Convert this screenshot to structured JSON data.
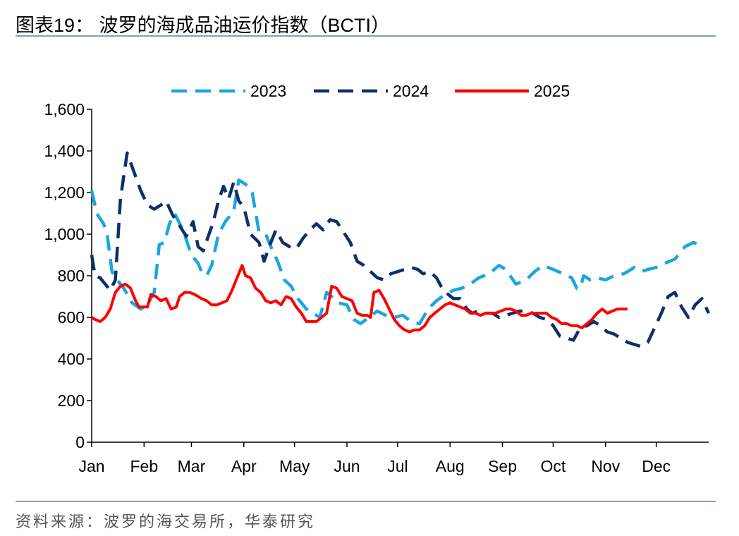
{
  "title": "图表19：  波罗的海成品油运价指数（BCTI）",
  "source": "资料来源：波罗的海交易所，华泰研究",
  "chart_data": {
    "type": "line",
    "x_unit": "day_of_year",
    "x_range": [
      1,
      366
    ],
    "months": [
      "Jan",
      "Feb",
      "Mar",
      "Apr",
      "May",
      "Jun",
      "Jul",
      "Aug",
      "Sep",
      "Oct",
      "Nov",
      "Dec"
    ],
    "month_start_days": [
      1,
      32,
      60,
      91,
      121,
      152,
      182,
      213,
      244,
      274,
      305,
      335
    ],
    "ylim": [
      0,
      1600
    ],
    "yticks": [
      0,
      200,
      400,
      600,
      800,
      1000,
      1200,
      1400,
      1600
    ],
    "ytick_labels": [
      "0",
      "200",
      "400",
      "600",
      "800",
      "1,000",
      "1,200",
      "1,400",
      "1,600"
    ],
    "legend_position": "top",
    "grid": false,
    "series": [
      {
        "name": "2023",
        "color": "#1aa6e0",
        "style": "dashed",
        "points": [
          [
            1,
            1210
          ],
          [
            4,
            1100
          ],
          [
            8,
            1050
          ],
          [
            10,
            1010
          ],
          [
            13,
            820
          ],
          [
            16,
            780
          ],
          [
            20,
            740
          ],
          [
            25,
            670
          ],
          [
            30,
            640
          ],
          [
            34,
            660
          ],
          [
            38,
            720
          ],
          [
            41,
            950
          ],
          [
            44,
            960
          ],
          [
            47,
            1050
          ],
          [
            50,
            1100
          ],
          [
            55,
            1020
          ],
          [
            60,
            900
          ],
          [
            64,
            860
          ],
          [
            66,
            820
          ],
          [
            69,
            800
          ],
          [
            72,
            850
          ],
          [
            76,
            1000
          ],
          [
            80,
            1060
          ],
          [
            85,
            1110
          ],
          [
            88,
            1260
          ],
          [
            90,
            1250
          ],
          [
            92,
            1240
          ],
          [
            96,
            1200
          ],
          [
            100,
            1010
          ],
          [
            104,
            1000
          ],
          [
            108,
            920
          ],
          [
            111,
            870
          ],
          [
            115,
            780
          ],
          [
            119,
            750
          ],
          [
            123,
            690
          ],
          [
            128,
            640
          ],
          [
            132,
            620
          ],
          [
            136,
            600
          ],
          [
            140,
            720
          ],
          [
            143,
            700
          ],
          [
            147,
            670
          ],
          [
            152,
            660
          ],
          [
            156,
            590
          ],
          [
            160,
            570
          ],
          [
            165,
            600
          ],
          [
            170,
            630
          ],
          [
            175,
            610
          ],
          [
            180,
            600
          ],
          [
            185,
            610
          ],
          [
            190,
            580
          ],
          [
            195,
            570
          ],
          [
            200,
            640
          ],
          [
            205,
            680
          ],
          [
            210,
            710
          ],
          [
            215,
            730
          ],
          [
            220,
            740
          ],
          [
            225,
            760
          ],
          [
            230,
            790
          ],
          [
            236,
            810
          ],
          [
            242,
            850
          ],
          [
            246,
            830
          ],
          [
            252,
            760
          ],
          [
            258,
            780
          ],
          [
            263,
            820
          ],
          [
            268,
            850
          ],
          [
            274,
            830
          ],
          [
            280,
            810
          ],
          [
            285,
            790
          ],
          [
            288,
            740
          ],
          [
            290,
            740
          ],
          [
            292,
            800
          ],
          [
            296,
            780
          ],
          [
            300,
            790
          ],
          [
            305,
            780
          ],
          [
            310,
            800
          ],
          [
            316,
            810
          ],
          [
            322,
            840
          ],
          [
            326,
            820
          ],
          [
            330,
            830
          ],
          [
            335,
            840
          ],
          [
            340,
            860
          ],
          [
            346,
            880
          ],
          [
            352,
            940
          ],
          [
            357,
            960
          ],
          [
            360,
            950
          ]
        ]
      },
      {
        "name": "2024",
        "color": "#0f2f6b",
        "style": "dashed",
        "points": [
          [
            1,
            900
          ],
          [
            3,
            800
          ],
          [
            6,
            790
          ],
          [
            9,
            760
          ],
          [
            12,
            730
          ],
          [
            15,
            780
          ],
          [
            18,
            1170
          ],
          [
            22,
            1390
          ],
          [
            26,
            1300
          ],
          [
            30,
            1210
          ],
          [
            34,
            1140
          ],
          [
            38,
            1120
          ],
          [
            42,
            1140
          ],
          [
            45,
            1160
          ],
          [
            49,
            1090
          ],
          [
            53,
            1040
          ],
          [
            57,
            990
          ],
          [
            61,
            1060
          ],
          [
            64,
            940
          ],
          [
            67,
            920
          ],
          [
            70,
            990
          ],
          [
            73,
            1060
          ],
          [
            76,
            1160
          ],
          [
            79,
            1230
          ],
          [
            82,
            1170
          ],
          [
            85,
            1250
          ],
          [
            88,
            1160
          ],
          [
            91,
            1130
          ],
          [
            95,
            1000
          ],
          [
            100,
            960
          ],
          [
            103,
            870
          ],
          [
            107,
            960
          ],
          [
            110,
            1020
          ],
          [
            114,
            960
          ],
          [
            118,
            940
          ],
          [
            122,
            930
          ],
          [
            126,
            980
          ],
          [
            130,
            1020
          ],
          [
            134,
            1050
          ],
          [
            138,
            1020
          ],
          [
            142,
            1070
          ],
          [
            146,
            1060
          ],
          [
            150,
            1010
          ],
          [
            154,
            960
          ],
          [
            158,
            870
          ],
          [
            162,
            850
          ],
          [
            166,
            820
          ],
          [
            170,
            790
          ],
          [
            174,
            780
          ],
          [
            178,
            810
          ],
          [
            182,
            820
          ],
          [
            186,
            830
          ],
          [
            190,
            840
          ],
          [
            194,
            830
          ],
          [
            197,
            810
          ],
          [
            201,
            820
          ],
          [
            205,
            790
          ],
          [
            209,
            730
          ],
          [
            212,
            710
          ],
          [
            215,
            690
          ],
          [
            219,
            690
          ],
          [
            223,
            640
          ],
          [
            226,
            620
          ],
          [
            230,
            630
          ],
          [
            234,
            620
          ],
          [
            238,
            620
          ],
          [
            242,
            600
          ],
          [
            246,
            610
          ],
          [
            250,
            620
          ],
          [
            254,
            630
          ],
          [
            258,
            630
          ],
          [
            262,
            620
          ],
          [
            266,
            600
          ],
          [
            270,
            590
          ],
          [
            274,
            560
          ],
          [
            278,
            510
          ],
          [
            282,
            500
          ],
          [
            286,
            490
          ],
          [
            290,
            550
          ],
          [
            294,
            560
          ],
          [
            298,
            580
          ],
          [
            302,
            560
          ],
          [
            306,
            530
          ],
          [
            310,
            520
          ],
          [
            314,
            500
          ],
          [
            318,
            480
          ],
          [
            322,
            470
          ],
          [
            326,
            460
          ],
          [
            330,
            480
          ],
          [
            334,
            550
          ],
          [
            338,
            620
          ],
          [
            342,
            700
          ],
          [
            346,
            720
          ],
          [
            350,
            650
          ],
          [
            354,
            600
          ],
          [
            358,
            660
          ],
          [
            362,
            690
          ],
          [
            366,
            620
          ]
        ]
      },
      {
        "name": "2025",
        "color": "#ff0000",
        "style": "solid",
        "points": [
          [
            1,
            600
          ],
          [
            3,
            590
          ],
          [
            6,
            580
          ],
          [
            9,
            600
          ],
          [
            12,
            640
          ],
          [
            15,
            720
          ],
          [
            18,
            750
          ],
          [
            21,
            760
          ],
          [
            24,
            740
          ],
          [
            27,
            680
          ],
          [
            29,
            650
          ],
          [
            31,
            650
          ],
          [
            34,
            650
          ],
          [
            36,
            710
          ],
          [
            39,
            700
          ],
          [
            42,
            680
          ],
          [
            45,
            690
          ],
          [
            48,
            640
          ],
          [
            51,
            650
          ],
          [
            53,
            700
          ],
          [
            56,
            720
          ],
          [
            59,
            720
          ],
          [
            62,
            710
          ],
          [
            66,
            690
          ],
          [
            69,
            680
          ],
          [
            72,
            660
          ],
          [
            75,
            660
          ],
          [
            78,
            670
          ],
          [
            81,
            680
          ],
          [
            84,
            730
          ],
          [
            87,
            790
          ],
          [
            90,
            850
          ],
          [
            92,
            800
          ],
          [
            95,
            790
          ],
          [
            98,
            740
          ],
          [
            101,
            720
          ],
          [
            104,
            680
          ],
          [
            107,
            670
          ],
          [
            110,
            680
          ],
          [
            113,
            660
          ],
          [
            116,
            700
          ],
          [
            119,
            690
          ],
          [
            122,
            650
          ],
          [
            125,
            620
          ],
          [
            128,
            580
          ],
          [
            131,
            580
          ],
          [
            134,
            580
          ],
          [
            137,
            600
          ],
          [
            140,
            620
          ],
          [
            143,
            750
          ],
          [
            146,
            740
          ],
          [
            149,
            700
          ],
          [
            152,
            690
          ],
          [
            155,
            680
          ],
          [
            158,
            620
          ],
          [
            161,
            610
          ],
          [
            164,
            610
          ],
          [
            166,
            600
          ],
          [
            168,
            720
          ],
          [
            171,
            730
          ],
          [
            174,
            690
          ],
          [
            177,
            640
          ],
          [
            180,
            590
          ],
          [
            183,
            560
          ],
          [
            186,
            540
          ],
          [
            189,
            530
          ],
          [
            192,
            540
          ],
          [
            195,
            540
          ],
          [
            198,
            560
          ],
          [
            201,
            600
          ],
          [
            204,
            620
          ],
          [
            207,
            640
          ],
          [
            210,
            660
          ],
          [
            213,
            670
          ],
          [
            216,
            660
          ],
          [
            219,
            650
          ],
          [
            222,
            640
          ],
          [
            225,
            620
          ],
          [
            228,
            620
          ],
          [
            231,
            610
          ],
          [
            234,
            620
          ],
          [
            237,
            620
          ],
          [
            240,
            620
          ],
          [
            243,
            630
          ],
          [
            246,
            640
          ],
          [
            249,
            640
          ],
          [
            252,
            630
          ],
          [
            255,
            610
          ],
          [
            258,
            610
          ],
          [
            261,
            620
          ],
          [
            264,
            620
          ],
          [
            267,
            620
          ],
          [
            270,
            620
          ],
          [
            273,
            600
          ],
          [
            276,
            590
          ],
          [
            279,
            570
          ],
          [
            282,
            570
          ],
          [
            285,
            560
          ],
          [
            288,
            560
          ],
          [
            291,
            550
          ],
          [
            294,
            570
          ],
          [
            297,
            590
          ],
          [
            300,
            620
          ],
          [
            303,
            640
          ],
          [
            306,
            620
          ],
          [
            309,
            630
          ],
          [
            312,
            640
          ],
          [
            315,
            640
          ],
          [
            318,
            640
          ]
        ]
      }
    ]
  }
}
